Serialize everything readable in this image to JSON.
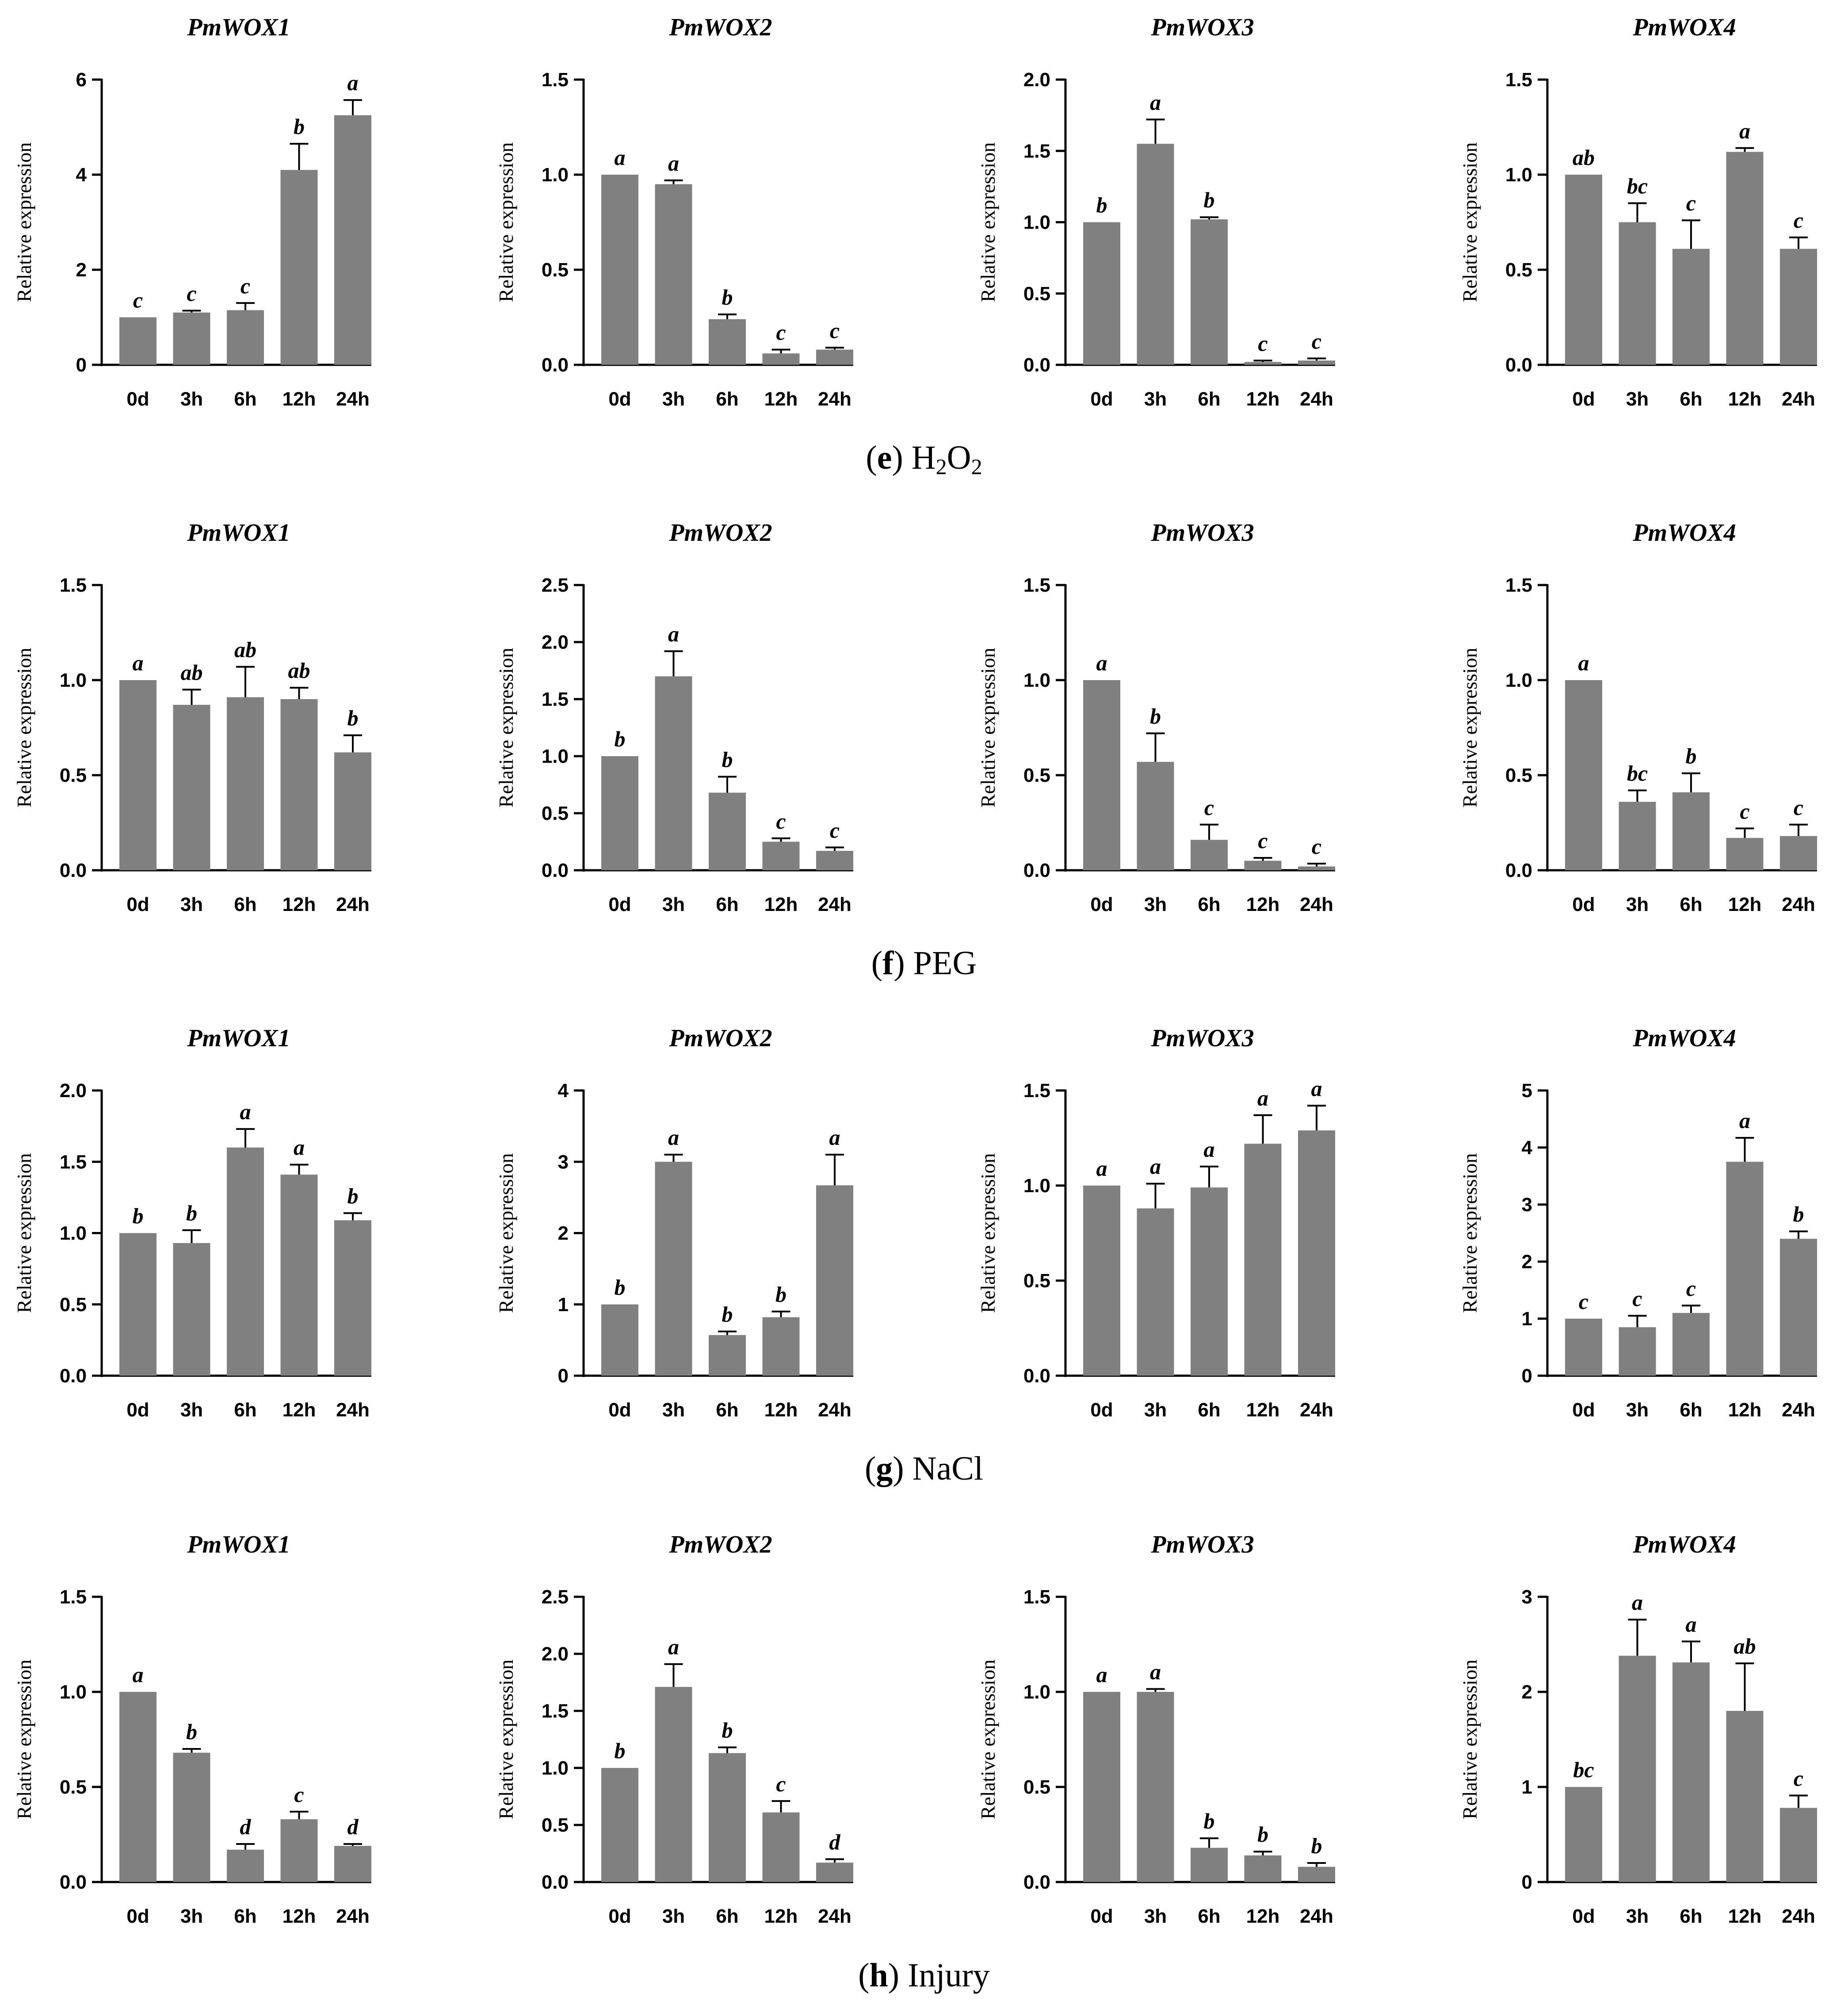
{
  "figure": {
    "y_axis_label": "Relative expression",
    "bar_color": "#808080",
    "axis_color": "#000000"
  },
  "chart_data": [
    {
      "panel_letter": "e",
      "panel_label": "H2O2",
      "charts": [
        {
          "type": "bar",
          "title": "PmWOX1",
          "ylabel": "Relative expression",
          "ylim": [
            0,
            6
          ],
          "ticks": [
            "0",
            "2",
            "4",
            "6"
          ],
          "categories": [
            "0d",
            "3h",
            "6h",
            "12h",
            "24h"
          ],
          "values": [
            1.0,
            1.1,
            1.15,
            4.1,
            5.25
          ],
          "errors": [
            0,
            0.04,
            0.15,
            0.55,
            0.32
          ],
          "letters": [
            "c",
            "c",
            "c",
            "b",
            "a"
          ]
        },
        {
          "type": "bar",
          "title": "PmWOX2",
          "ylabel": "Relative expression",
          "ylim": [
            0,
            1.5
          ],
          "ticks": [
            "0.0",
            "0.5",
            "1.0",
            "1.5"
          ],
          "categories": [
            "0d",
            "3h",
            "6h",
            "12h",
            "24h"
          ],
          "values": [
            1.0,
            0.95,
            0.24,
            0.06,
            0.08
          ],
          "errors": [
            0,
            0.02,
            0.025,
            0.02,
            0.01
          ],
          "letters": [
            "a",
            "a",
            "b",
            "c",
            "c"
          ]
        },
        {
          "type": "bar",
          "title": "PmWOX3",
          "ylabel": "Relative expression",
          "ylim": [
            0,
            2.0
          ],
          "ticks": [
            "0.0",
            "0.5",
            "1.0",
            "1.5",
            "2.0"
          ],
          "categories": [
            "0d",
            "3h",
            "6h",
            "12h",
            "24h"
          ],
          "values": [
            1.0,
            1.55,
            1.02,
            0.02,
            0.03
          ],
          "errors": [
            0,
            0.17,
            0.015,
            0.01,
            0.015
          ],
          "letters": [
            "b",
            "a",
            "b",
            "c",
            "c"
          ]
        },
        {
          "type": "bar",
          "title": "PmWOX4",
          "ylabel": "Relative expression",
          "ylim": [
            0,
            1.5
          ],
          "ticks": [
            "0.0",
            "0.5",
            "1.0",
            "1.5"
          ],
          "categories": [
            "0d",
            "3h",
            "6h",
            "12h",
            "24h"
          ],
          "values": [
            1.0,
            0.75,
            0.61,
            1.12,
            0.61
          ],
          "errors": [
            0,
            0.1,
            0.15,
            0.02,
            0.06
          ],
          "letters": [
            "ab",
            "bc",
            "c",
            "a",
            "c"
          ]
        }
      ]
    },
    {
      "panel_letter": "f",
      "panel_label": "PEG",
      "charts": [
        {
          "type": "bar",
          "title": "PmWOX1",
          "ylabel": "Relative expression",
          "ylim": [
            0,
            1.5
          ],
          "ticks": [
            "0.0",
            "0.5",
            "1.0",
            "1.5"
          ],
          "categories": [
            "0d",
            "3h",
            "6h",
            "12h",
            "24h"
          ],
          "values": [
            1.0,
            0.87,
            0.91,
            0.9,
            0.62
          ],
          "errors": [
            0,
            0.08,
            0.16,
            0.06,
            0.09
          ],
          "letters": [
            "a",
            "ab",
            "ab",
            "ab",
            "b"
          ]
        },
        {
          "type": "bar",
          "title": "PmWOX2",
          "ylabel": "Relative expression",
          "ylim": [
            0,
            2.5
          ],
          "ticks": [
            "0.0",
            "0.5",
            "1.0",
            "1.5",
            "2.0",
            "2.5"
          ],
          "categories": [
            "0d",
            "3h",
            "6h",
            "12h",
            "24h"
          ],
          "values": [
            1.0,
            1.7,
            0.68,
            0.25,
            0.17
          ],
          "errors": [
            0,
            0.22,
            0.14,
            0.03,
            0.03
          ],
          "letters": [
            "b",
            "a",
            "b",
            "c",
            "c"
          ]
        },
        {
          "type": "bar",
          "title": "PmWOX3",
          "ylabel": "Relative expression",
          "ylim": [
            0,
            1.5
          ],
          "ticks": [
            "0.0",
            "0.5",
            "1.0",
            "1.5"
          ],
          "categories": [
            "0d",
            "3h",
            "6h",
            "12h",
            "24h"
          ],
          "values": [
            1.0,
            0.57,
            0.16,
            0.05,
            0.02
          ],
          "errors": [
            0,
            0.15,
            0.08,
            0.015,
            0.015
          ],
          "letters": [
            "a",
            "b",
            "c",
            "c",
            "c"
          ]
        },
        {
          "type": "bar",
          "title": "PmWOX4",
          "ylabel": "Relative expression",
          "ylim": [
            0,
            1.5
          ],
          "ticks": [
            "0.0",
            "0.5",
            "1.0",
            "1.5"
          ],
          "categories": [
            "0d",
            "3h",
            "6h",
            "12h",
            "24h"
          ],
          "values": [
            1.0,
            0.36,
            0.41,
            0.17,
            0.18
          ],
          "errors": [
            0,
            0.06,
            0.1,
            0.05,
            0.06
          ],
          "letters": [
            "a",
            "bc",
            "b",
            "c",
            "c"
          ]
        }
      ]
    },
    {
      "panel_letter": "g",
      "panel_label": "NaCl",
      "charts": [
        {
          "type": "bar",
          "title": "PmWOX1",
          "ylabel": "Relative expression",
          "ylim": [
            0,
            2.0
          ],
          "ticks": [
            "0.0",
            "0.5",
            "1.0",
            "1.5",
            "2.0"
          ],
          "categories": [
            "0d",
            "3h",
            "6h",
            "12h",
            "24h"
          ],
          "values": [
            1.0,
            0.93,
            1.6,
            1.41,
            1.09
          ],
          "errors": [
            0,
            0.09,
            0.13,
            0.07,
            0.05
          ],
          "letters": [
            "b",
            "b",
            "a",
            "a",
            "b"
          ]
        },
        {
          "type": "bar",
          "title": "PmWOX2",
          "ylabel": "Relative expression",
          "ylim": [
            0,
            4
          ],
          "ticks": [
            "0",
            "1",
            "2",
            "3",
            "4"
          ],
          "categories": [
            "0d",
            "3h",
            "6h",
            "12h",
            "24h"
          ],
          "values": [
            1.0,
            3.0,
            0.57,
            0.82,
            2.67
          ],
          "errors": [
            0,
            0.1,
            0.05,
            0.08,
            0.43
          ],
          "letters": [
            "b",
            "a",
            "b",
            "b",
            "a"
          ]
        },
        {
          "type": "bar",
          "title": "PmWOX3",
          "ylabel": "Relative expression",
          "ylim": [
            0,
            1.5
          ],
          "ticks": [
            "0.0",
            "0.5",
            "1.0",
            "1.5"
          ],
          "categories": [
            "0d",
            "3h",
            "6h",
            "12h",
            "24h"
          ],
          "values": [
            1.0,
            0.88,
            0.99,
            1.22,
            1.29
          ],
          "errors": [
            0,
            0.13,
            0.11,
            0.15,
            0.13
          ],
          "letters": [
            "a",
            "a",
            "a",
            "a",
            "a"
          ]
        },
        {
          "type": "bar",
          "title": "PmWOX4",
          "ylabel": "Relative expression",
          "ylim": [
            0,
            5
          ],
          "ticks": [
            "0",
            "1",
            "2",
            "3",
            "4",
            "5"
          ],
          "categories": [
            "0d",
            "3h",
            "6h",
            "12h",
            "24h"
          ],
          "values": [
            1.0,
            0.85,
            1.1,
            3.75,
            2.4
          ],
          "errors": [
            0,
            0.2,
            0.13,
            0.42,
            0.13
          ],
          "letters": [
            "c",
            "c",
            "c",
            "a",
            "b"
          ]
        }
      ]
    },
    {
      "panel_letter": "h",
      "panel_label": "Injury",
      "charts": [
        {
          "type": "bar",
          "title": "PmWOX1",
          "ylabel": "Relative expression",
          "ylim": [
            0,
            1.5
          ],
          "ticks": [
            "0.0",
            "0.5",
            "1.0",
            "1.5"
          ],
          "categories": [
            "0d",
            "3h",
            "6h",
            "12h",
            "24h"
          ],
          "values": [
            1.0,
            0.68,
            0.17,
            0.33,
            0.19
          ],
          "errors": [
            0,
            0.02,
            0.03,
            0.04,
            0.01
          ],
          "letters": [
            "a",
            "b",
            "d",
            "c",
            "d"
          ]
        },
        {
          "type": "bar",
          "title": "PmWOX2",
          "ylabel": "Relative expression",
          "ylim": [
            0,
            2.5
          ],
          "ticks": [
            "0.0",
            "0.5",
            "1.0",
            "1.5",
            "2.0",
            "2.5"
          ],
          "categories": [
            "0d",
            "3h",
            "6h",
            "12h",
            "24h"
          ],
          "values": [
            1.0,
            1.71,
            1.13,
            0.61,
            0.17
          ],
          "errors": [
            0,
            0.2,
            0.05,
            0.1,
            0.03
          ],
          "letters": [
            "b",
            "a",
            "b",
            "c",
            "d"
          ]
        },
        {
          "type": "bar",
          "title": "PmWOX3",
          "ylabel": "Relative expression",
          "ylim": [
            0,
            1.5
          ],
          "ticks": [
            "0.0",
            "0.5",
            "1.0",
            "1.5"
          ],
          "categories": [
            "0d",
            "3h",
            "6h",
            "12h",
            "24h"
          ],
          "values": [
            1.0,
            1.0,
            0.18,
            0.14,
            0.08
          ],
          "errors": [
            0,
            0.015,
            0.05,
            0.02,
            0.02
          ],
          "letters": [
            "a",
            "a",
            "b",
            "b",
            "b"
          ]
        },
        {
          "type": "bar",
          "title": "PmWOX4",
          "ylabel": "Relative expression",
          "ylim": [
            0,
            3
          ],
          "ticks": [
            "0",
            "1",
            "2",
            "3"
          ],
          "categories": [
            "0d",
            "3h",
            "6h",
            "12h",
            "24h"
          ],
          "values": [
            1.0,
            2.38,
            2.31,
            1.8,
            0.78
          ],
          "errors": [
            0,
            0.38,
            0.22,
            0.5,
            0.13
          ],
          "letters": [
            "bc",
            "a",
            "a",
            "ab",
            "c"
          ]
        }
      ]
    }
  ]
}
